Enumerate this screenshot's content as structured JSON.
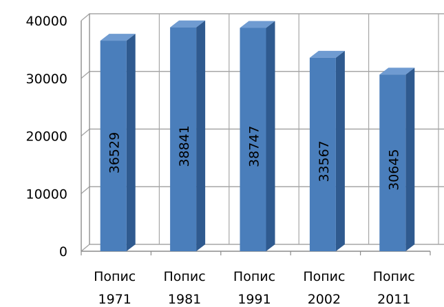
{
  "chart_data": {
    "type": "bar",
    "style": "3d-column",
    "categories": [
      [
        "Попис",
        "1971"
      ],
      [
        "Попис",
        "1981"
      ],
      [
        "Попис",
        "1991"
      ],
      [
        "Попис",
        "2002"
      ],
      [
        "Попис",
        "2011"
      ]
    ],
    "values": [
      36529,
      38841,
      38747,
      33567,
      30645
    ],
    "data_labels": [
      "36529",
      "38841",
      "38747",
      "33567",
      "30645"
    ],
    "yticks": [
      "0",
      "10000",
      "20000",
      "30000",
      "40000"
    ],
    "ylim": [
      0,
      40000
    ],
    "grid": true,
    "legend": "none",
    "colors": {
      "bar_front": "#4a7ebb",
      "bar_side": "#2f5a8f",
      "bar_top": "#6f9bd1",
      "grid": "#a6a6a6",
      "wall": "#8c8c8c"
    }
  }
}
